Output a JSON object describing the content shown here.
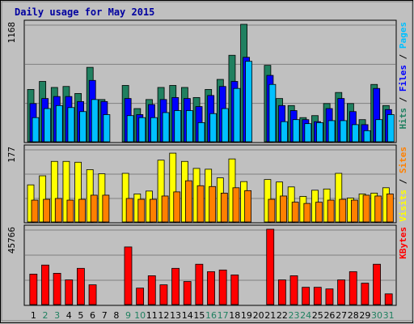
{
  "chart_data": {
    "type": "bar",
    "title": "Daily usage for May 2015",
    "categories": [
      "1",
      "2",
      "3",
      "4",
      "5",
      "6",
      "7",
      "8",
      "9",
      "10",
      "11",
      "12",
      "13",
      "14",
      "15",
      "16",
      "17",
      "18",
      "19",
      "20",
      "21",
      "22",
      "23",
      "24",
      "25",
      "26",
      "27",
      "28",
      "29",
      "30",
      "31"
    ],
    "weekend_days": [
      "2",
      "3",
      "9",
      "10",
      "16",
      "17",
      "23",
      "24",
      "30",
      "31"
    ],
    "colors": {
      "hits": "#208060",
      "files": "#0000ff",
      "pages": "#00c0ff",
      "visits": "#ffff00",
      "sites": "#ff8000",
      "kbytes": "#ff0000",
      "title": "#0000a0",
      "weekend": "#208060",
      "weekday": "#000000",
      "bg": "#c0c0c0"
    },
    "panels": [
      {
        "id": "top",
        "ymax_label": "1168",
        "ymax": 1168,
        "legend": [
          "Pages",
          "Files",
          "Hits"
        ],
        "legend_colors": [
          "#00c0ff",
          "#0000ff",
          "#208060"
        ],
        "series": [
          {
            "name": "Hits",
            "values": [
              520,
              600,
              540,
              550,
              480,
              740,
              420,
              0,
              560,
              330,
              420,
              540,
              560,
              540,
              440,
              520,
              620,
              860,
              1168,
              0,
              760,
              430,
              360,
              240,
              260,
              380,
              490,
              380,
              220,
              570,
              360
            ]
          },
          {
            "name": "Files",
            "values": [
              380,
              430,
              450,
              450,
              400,
              610,
              400,
              0,
              430,
              270,
              370,
              420,
              440,
              430,
              350,
              460,
              550,
              600,
              840,
              0,
              660,
              360,
              310,
              220,
              200,
              330,
              430,
              300,
              170,
              530,
              320
            ]
          },
          {
            "name": "Pages",
            "values": [
              240,
              330,
              360,
              340,
              300,
              420,
              270,
              0,
              260,
              240,
              240,
              290,
              310,
              310,
              190,
              280,
              330,
              530,
              800,
              0,
              570,
              200,
              220,
              180,
              190,
              210,
              210,
              170,
              110,
              220,
              270
            ]
          }
        ]
      },
      {
        "id": "middle",
        "ymax_label": "177",
        "ymax": 177,
        "legend": [
          "Sites",
          "Visits"
        ],
        "legend_colors": [
          "#ff8000",
          "#ffff00"
        ],
        "series": [
          {
            "name": "Visits",
            "values": [
              90,
              112,
              147,
              147,
              145,
              127,
              117,
              0,
              118,
              68,
              75,
              150,
              167,
              147,
              130,
              128,
              107,
              153,
              98,
              0,
              103,
              97,
              85,
              62,
              77,
              80,
              118,
              58,
              68,
              70,
              83
            ]
          },
          {
            "name": "Sites",
            "values": [
              53,
              55,
              57,
              53,
              55,
              65,
              65,
              0,
              57,
              55,
              55,
              63,
              73,
              100,
              88,
              86,
              70,
              83,
              76,
              0,
              55,
              63,
              48,
              45,
              48,
              53,
              55,
              53,
              65,
              63,
              68
            ]
          }
        ]
      },
      {
        "id": "bottom",
        "ymax_label": "45766",
        "ymax": 45766,
        "legend": [
          "KBytes"
        ],
        "legend_colors": [
          "#ff0000"
        ],
        "series": [
          {
            "name": "KBytes",
            "values": [
              18500,
              24000,
              19000,
              15000,
              22000,
              12000,
              0,
              0,
              35000,
              10000,
              17500,
              12000,
              22000,
              14000,
              24500,
              20000,
              21000,
              18000,
              0,
              0,
              45766,
              15000,
              17500,
              10500,
              10500,
              9500,
              15000,
              20000,
              13000,
              24500,
              6500
            ]
          }
        ]
      }
    ]
  }
}
